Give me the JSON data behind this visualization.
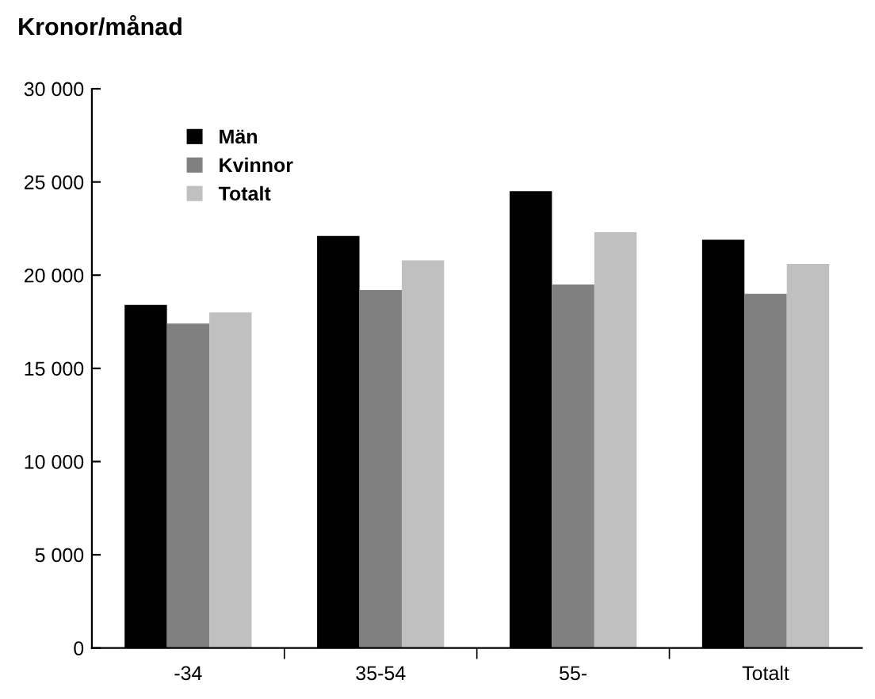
{
  "chart_data": {
    "type": "bar",
    "title": "Kronor/månad",
    "categories": [
      "-34",
      "35-54",
      "55-",
      "Totalt"
    ],
    "series": [
      {
        "name": "Män",
        "color": "#000000",
        "values": [
          18400,
          22100,
          24500,
          21900
        ]
      },
      {
        "name": "Kvinnor",
        "color": "#808080",
        "values": [
          17400,
          19200,
          19500,
          19000
        ]
      },
      {
        "name": "Totalt",
        "color": "#c0c0c0",
        "values": [
          18000,
          20800,
          22300,
          20600
        ]
      }
    ],
    "ylim": [
      0,
      30000
    ],
    "yticks": [
      {
        "value": 0,
        "label": "0"
      },
      {
        "value": 5000,
        "label": "5 000"
      },
      {
        "value": 10000,
        "label": "10 000"
      },
      {
        "value": 15000,
        "label": "15 000"
      },
      {
        "value": 20000,
        "label": "20 000"
      },
      {
        "value": 25000,
        "label": "25 000"
      },
      {
        "value": 30000,
        "label": "30 000"
      }
    ],
    "grid": false,
    "legend": "top left"
  }
}
